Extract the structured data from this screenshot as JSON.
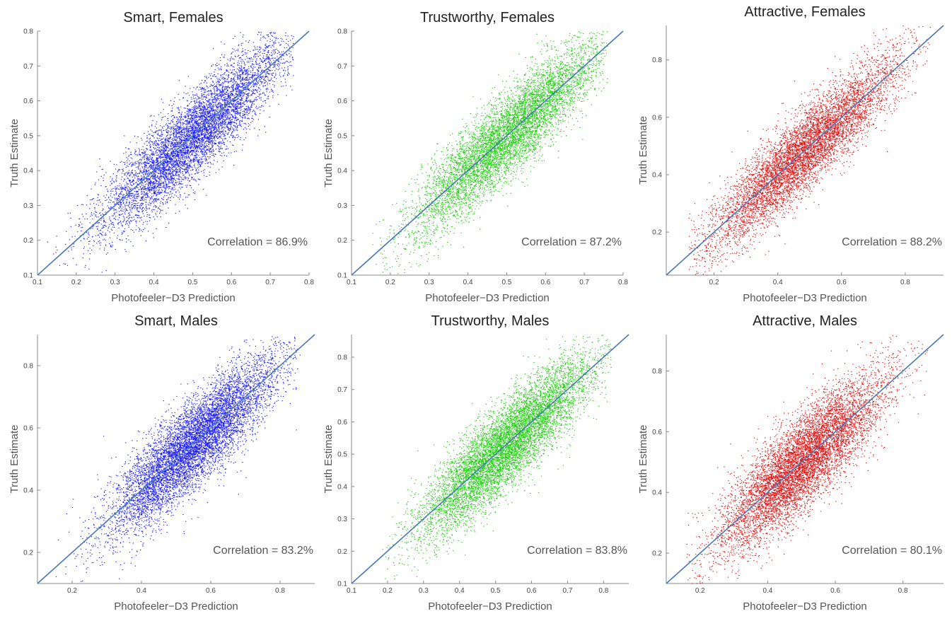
{
  "colors": {
    "blue_points": "#1a1aff",
    "green_points": "#22cc11",
    "red_points": "#dd1111",
    "fit_line": "#4a78b8",
    "axis": "#888888"
  },
  "chart_data": [
    {
      "type": "scatter",
      "title": "Smart, Females",
      "xlabel": "Photofeeler−D3 Prediction",
      "ylabel": "Truth Estimate",
      "annotation": "Correlation = 86.9%",
      "correlation": 0.869,
      "point_color": "blue",
      "xlim": [
        0.1,
        0.8
      ],
      "ylim": [
        0.1,
        0.8
      ],
      "xticks": [
        "0.1",
        "0.2",
        "0.3",
        "0.4",
        "0.5",
        "0.6",
        "0.7",
        "0.8"
      ],
      "xtick_values": [
        0.1,
        0.2,
        0.3,
        0.4,
        0.5,
        0.6,
        0.7,
        0.8
      ],
      "yticks": [
        "0.1",
        "0.2",
        "0.3",
        "0.4",
        "0.5",
        "0.6",
        "0.7",
        "0.8"
      ],
      "ytick_values": [
        0.1,
        0.2,
        0.3,
        0.4,
        0.5,
        0.6,
        0.7,
        0.8
      ],
      "fit_line": {
        "x": [
          0.1,
          0.8
        ],
        "y": [
          0.1,
          0.8
        ]
      },
      "x_distribution": {
        "mean": 0.5,
        "sd": 0.12,
        "min": 0.12,
        "max": 0.76
      },
      "y_spread_sd": 0.06,
      "approx_point_count": 7000
    },
    {
      "type": "scatter",
      "title": "Trustworthy, Females",
      "xlabel": "Photofeeler−D3 Prediction",
      "ylabel": "Truth Estimate",
      "annotation": "Correlation = 87.2%",
      "correlation": 0.872,
      "point_color": "green",
      "xlim": [
        0.1,
        0.8
      ],
      "ylim": [
        0.1,
        0.8
      ],
      "xticks": [
        "0.1",
        "0.2",
        "0.3",
        "0.4",
        "0.5",
        "0.6",
        "0.7",
        "0.8"
      ],
      "xtick_values": [
        0.1,
        0.2,
        0.3,
        0.4,
        0.5,
        0.6,
        0.7,
        0.8
      ],
      "yticks": [
        "0.1",
        "0.2",
        "0.3",
        "0.4",
        "0.5",
        "0.6",
        "0.7",
        "0.8"
      ],
      "ytick_values": [
        0.1,
        0.2,
        0.3,
        0.4,
        0.5,
        0.6,
        0.7,
        0.8
      ],
      "fit_line": {
        "x": [
          0.1,
          0.8
        ],
        "y": [
          0.1,
          0.8
        ]
      },
      "x_distribution": {
        "mean": 0.5,
        "sd": 0.12,
        "min": 0.15,
        "max": 0.76
      },
      "y_spread_sd": 0.06,
      "approx_point_count": 7000
    },
    {
      "type": "scatter",
      "title": "Attractive, Females",
      "xlabel": "Photofeeler−D3 Prediction",
      "ylabel": "Truth Estimate",
      "annotation": "Correlation = 88.2%",
      "correlation": 0.882,
      "point_color": "red",
      "xlim": [
        0.05,
        0.92
      ],
      "ylim": [
        0.05,
        0.92
      ],
      "xticks": [
        "0.2",
        "0.4",
        "0.6",
        "0.8"
      ],
      "xtick_values": [
        0.2,
        0.4,
        0.6,
        0.8
      ],
      "yticks": [
        "0.2",
        "0.4",
        "0.6",
        "0.8"
      ],
      "ytick_values": [
        0.2,
        0.4,
        0.6,
        0.8
      ],
      "fit_line": {
        "x": [
          0.05,
          0.92
        ],
        "y": [
          0.05,
          0.92
        ]
      },
      "x_distribution": {
        "mean": 0.48,
        "sd": 0.15,
        "min": 0.12,
        "max": 0.88
      },
      "y_spread_sd": 0.07,
      "approx_point_count": 7000
    },
    {
      "type": "scatter",
      "title": "Smart, Males",
      "xlabel": "Photofeeler−D3 Prediction",
      "ylabel": "Truth Estimate",
      "annotation": "Correlation = 83.2%",
      "correlation": 0.832,
      "point_color": "blue",
      "xlim": [
        0.1,
        0.9
      ],
      "ylim": [
        0.1,
        0.9
      ],
      "xticks": [
        "0.2",
        "0.4",
        "0.6",
        "0.8"
      ],
      "xtick_values": [
        0.2,
        0.4,
        0.6,
        0.8
      ],
      "yticks": [
        "0.2",
        "0.4",
        "0.6",
        "0.8"
      ],
      "ytick_values": [
        0.2,
        0.4,
        0.6,
        0.8
      ],
      "fit_line": {
        "x": [
          0.1,
          0.9
        ],
        "y": [
          0.1,
          0.9
        ]
      },
      "x_distribution": {
        "mean": 0.55,
        "sd": 0.12,
        "min": 0.15,
        "max": 0.86
      },
      "y_spread_sd": 0.07,
      "approx_point_count": 8000
    },
    {
      "type": "scatter",
      "title": "Trustworthy, Males",
      "xlabel": "Photofeeler−D3 Prediction",
      "ylabel": "Truth Estimate",
      "annotation": "Correlation = 83.8%",
      "correlation": 0.838,
      "point_color": "green",
      "xlim": [
        0.1,
        0.87
      ],
      "ylim": [
        0.1,
        0.87
      ],
      "xticks": [
        "0.1",
        "0.2",
        "0.3",
        "0.4",
        "0.5",
        "0.6",
        "0.7",
        "0.8"
      ],
      "xtick_values": [
        0.1,
        0.2,
        0.3,
        0.4,
        0.5,
        0.6,
        0.7,
        0.8
      ],
      "yticks": [
        "0.1",
        "0.2",
        "0.3",
        "0.4",
        "0.5",
        "0.6",
        "0.7",
        "0.8"
      ],
      "ytick_values": [
        0.1,
        0.2,
        0.3,
        0.4,
        0.5,
        0.6,
        0.7,
        0.8
      ],
      "fit_line": {
        "x": [
          0.1,
          0.87
        ],
        "y": [
          0.1,
          0.87
        ]
      },
      "x_distribution": {
        "mean": 0.53,
        "sd": 0.12,
        "min": 0.18,
        "max": 0.82
      },
      "y_spread_sd": 0.065,
      "approx_point_count": 8000
    },
    {
      "type": "scatter",
      "title": "Attractive, Males",
      "xlabel": "Photofeeler−D3 Prediction",
      "ylabel": "Truth Estimate",
      "annotation": "Correlation = 80.1%",
      "correlation": 0.801,
      "point_color": "red",
      "xlim": [
        0.1,
        0.92
      ],
      "ylim": [
        0.1,
        0.92
      ],
      "xticks": [
        "0.2",
        "0.4",
        "0.6",
        "0.8"
      ],
      "xtick_values": [
        0.2,
        0.4,
        0.6,
        0.8
      ],
      "yticks": [
        "0.2",
        "0.4",
        "0.6",
        "0.8"
      ],
      "ytick_values": [
        0.2,
        0.4,
        0.6,
        0.8
      ],
      "fit_line": {
        "x": [
          0.1,
          0.92
        ],
        "y": [
          0.1,
          0.92
        ]
      },
      "x_distribution": {
        "mean": 0.5,
        "sd": 0.12,
        "min": 0.15,
        "max": 0.88
      },
      "y_spread_sd": 0.075,
      "approx_point_count": 8000
    }
  ]
}
